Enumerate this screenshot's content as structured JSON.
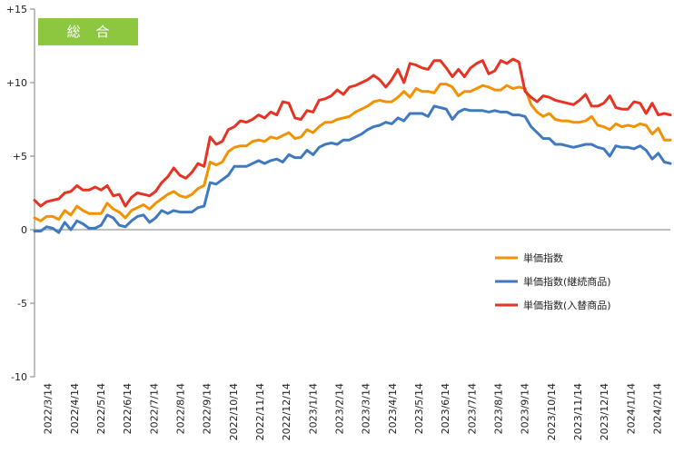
{
  "chart_data": {
    "type": "line",
    "title": "総 合",
    "xlabel": "",
    "ylabel": "",
    "ylim": [
      -10,
      15
    ],
    "yticks": [
      {
        "value": 15,
        "label": "+15"
      },
      {
        "value": 10,
        "label": "+10"
      },
      {
        "value": 5,
        "label": "+5"
      },
      {
        "value": 0,
        "label": "0"
      },
      {
        "value": -5,
        "label": "-5"
      },
      {
        "value": -10,
        "label": "-10"
      }
    ],
    "xtick_labels": [
      "2022/3/14",
      "2022/4/14",
      "2022/5/14",
      "2022/6/14",
      "2022/7/14",
      "2022/8/14",
      "2022/9/14",
      "2022/10/14",
      "2022/11/14",
      "2022/12/14",
      "2023/1/14",
      "2023/2/14",
      "2023/3/14",
      "2023/4/14",
      "2023/5/14",
      "2023/6/14",
      "2023/7/14",
      "2023/8/14",
      "2023/9/14",
      "2023/10/14",
      "2023/11/14",
      "2023/12/14",
      "2024/1/14",
      "2024/2/14"
    ],
    "legend_placement": "right",
    "grid": false,
    "colors": {
      "unit": "#f39200",
      "continuing": "#3f79c1",
      "replacement": "#e63323",
      "badge": "#8dc63f",
      "axis": "#7f7f7f"
    },
    "series": [
      {
        "name": "単価指数",
        "key": "unit",
        "values": [
          0.8,
          0.6,
          0.9,
          0.9,
          0.7,
          1.3,
          1.0,
          1.6,
          1.3,
          1.1,
          1.1,
          1.1,
          1.8,
          1.4,
          1.2,
          0.8,
          1.3,
          1.5,
          1.7,
          1.4,
          1.8,
          2.1,
          2.4,
          2.6,
          2.3,
          2.2,
          2.4,
          2.8,
          3.0,
          4.6,
          4.4,
          4.6,
          5.3,
          5.6,
          5.7,
          5.7,
          6.0,
          6.1,
          6.0,
          6.3,
          6.2,
          6.4,
          6.6,
          6.2,
          6.3,
          6.8,
          6.6,
          7.0,
          7.3,
          7.3,
          7.5,
          7.6,
          7.7,
          8.0,
          8.2,
          8.4,
          8.7,
          8.8,
          8.7,
          8.7,
          9.0,
          9.4,
          9.0,
          9.6,
          9.4,
          9.4,
          9.3,
          9.9,
          9.9,
          9.7,
          9.1,
          9.4,
          9.4,
          9.6,
          9.8,
          9.7,
          9.5,
          9.5,
          9.8,
          9.6,
          9.7,
          9.6,
          8.5,
          8.0,
          7.7,
          7.9,
          7.5,
          7.4,
          7.4,
          7.3,
          7.3,
          7.4,
          7.7,
          7.1,
          7.0,
          6.8,
          7.2,
          7.0,
          7.1,
          7.0,
          7.2,
          7.1,
          6.5,
          6.9,
          6.1,
          6.1
        ]
      },
      {
        "name": "単価指数(継続商品)",
        "key": "continuing",
        "values": [
          -0.1,
          -0.1,
          0.2,
          0.1,
          -0.2,
          0.5,
          0.0,
          0.6,
          0.4,
          0.1,
          0.1,
          0.3,
          1.0,
          0.8,
          0.3,
          0.2,
          0.6,
          0.9,
          1.0,
          0.5,
          0.8,
          1.3,
          1.1,
          1.3,
          1.2,
          1.2,
          1.2,
          1.5,
          1.6,
          3.2,
          3.1,
          3.4,
          3.7,
          4.3,
          4.3,
          4.3,
          4.5,
          4.7,
          4.5,
          4.7,
          4.8,
          4.6,
          5.1,
          4.9,
          4.9,
          5.4,
          5.1,
          5.6,
          5.8,
          5.9,
          5.8,
          6.1,
          6.1,
          6.3,
          6.5,
          6.8,
          7.0,
          7.1,
          7.3,
          7.2,
          7.6,
          7.4,
          7.9,
          7.9,
          7.9,
          7.7,
          8.4,
          8.3,
          8.2,
          7.5,
          8.0,
          8.2,
          8.1,
          8.1,
          8.1,
          8.0,
          8.1,
          8.0,
          8.0,
          7.8,
          7.8,
          7.7,
          7.0,
          6.6,
          6.2,
          6.2,
          5.8,
          5.8,
          5.7,
          5.6,
          5.7,
          5.8,
          5.8,
          5.6,
          5.5,
          5.0,
          5.7,
          5.6,
          5.6,
          5.5,
          5.7,
          5.4,
          4.8,
          5.2,
          4.6,
          4.5
        ]
      },
      {
        "name": "単価指数(入替商品)",
        "key": "replacement",
        "values": [
          2.0,
          1.6,
          1.9,
          2.0,
          2.1,
          2.5,
          2.6,
          3.0,
          2.7,
          2.7,
          2.9,
          2.7,
          3.0,
          2.3,
          2.4,
          1.6,
          2.2,
          2.5,
          2.4,
          2.3,
          2.6,
          3.2,
          3.6,
          4.2,
          3.7,
          3.5,
          3.9,
          4.5,
          4.3,
          6.3,
          5.8,
          6.0,
          6.8,
          7.0,
          7.4,
          7.3,
          7.5,
          7.8,
          7.6,
          8.0,
          7.8,
          8.7,
          8.6,
          7.6,
          7.5,
          8.1,
          8.0,
          8.8,
          8.9,
          9.1,
          9.5,
          9.2,
          9.7,
          9.8,
          10.0,
          10.2,
          10.5,
          10.2,
          9.7,
          10.2,
          10.9,
          10.0,
          11.3,
          11.2,
          11.0,
          10.9,
          11.5,
          11.5,
          11.0,
          10.4,
          10.9,
          10.4,
          11.0,
          11.3,
          11.5,
          10.6,
          10.8,
          11.5,
          11.3,
          11.6,
          11.4,
          9.4,
          9.0,
          8.7,
          9.1,
          9.0,
          8.8,
          8.7,
          8.6,
          8.5,
          8.8,
          9.2,
          8.4,
          8.4,
          8.6,
          9.1,
          8.3,
          8.2,
          8.2,
          8.7,
          8.6,
          7.9,
          8.6,
          7.8,
          7.9,
          7.8
        ]
      }
    ]
  }
}
